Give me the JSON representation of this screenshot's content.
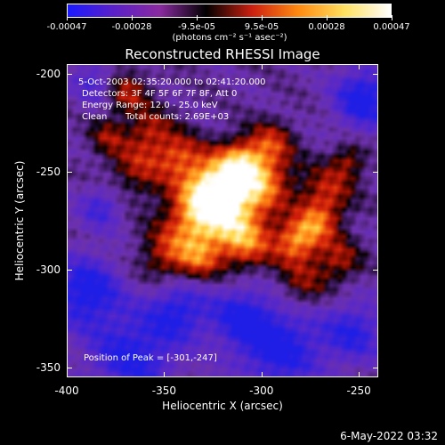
{
  "colorbar": {
    "ticks": [
      "-0.00047",
      "-0.00028",
      "-9.5e-05",
      "9.5e-05",
      "0.00028",
      "0.00047"
    ],
    "units": "(photons cm⁻² s⁻¹ asec⁻²)",
    "colors": [
      "#1a1aff",
      "#5a20c8",
      "#8a2aa0",
      "#000000",
      "#cc2010",
      "#ff8a10",
      "#ffe060",
      "#ffffff"
    ]
  },
  "title": "Reconstructed RHESSI Image",
  "info": {
    "time_range": "5-Oct-2003 02:35:20.000 to 02:41:20.000",
    "detectors": "Detectors: 3F 4F 5F 6F 7F 8F, Att 0",
    "energy": "Energy Range: 12.0 - 25.0 keV",
    "method": "Clean",
    "counts": "Total counts: 2.69E+03",
    "peak": "Position of Peak = [-301,-247]"
  },
  "axes": {
    "xlabel": "Heliocentric X (arcsec)",
    "ylabel": "Heliocentric Y (arcsec)",
    "x_ticks": [
      "-400",
      "-350",
      "-300",
      "-250"
    ],
    "y_ticks": [
      "-200",
      "-250",
      "-300",
      "-350"
    ],
    "x_range": [
      -400,
      -240
    ],
    "y_range": [
      -355,
      -195
    ]
  },
  "timestamp": "6-May-2022 03:32"
}
